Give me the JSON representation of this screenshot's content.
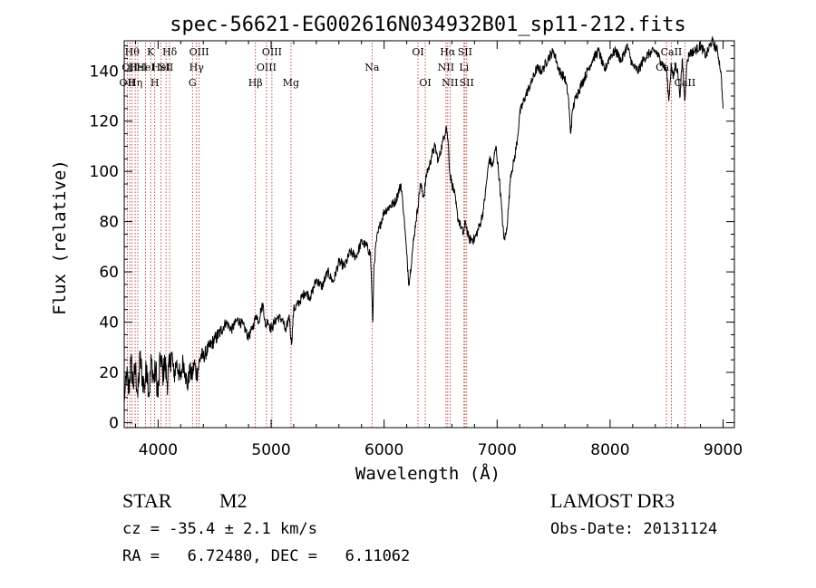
{
  "chart_data": {
    "type": "line",
    "title": "spec-56621-EG002616N034932B01_sp11-212.fits",
    "xlabel": "Wavelength (Å)",
    "ylabel": "Flux (relative)",
    "xlim": [
      3700,
      9100
    ],
    "ylim": [
      -2,
      152
    ],
    "xticks": [
      4000,
      5000,
      6000,
      7000,
      8000,
      9000
    ],
    "yticks": [
      0,
      20,
      40,
      60,
      80,
      100,
      120,
      140
    ],
    "line_color": "#000000",
    "marker_color": "#b22222",
    "series": [
      {
        "name": "flux",
        "x": [
          3700,
          3720,
          3740,
          3760,
          3780,
          3800,
          3820,
          3840,
          3860,
          3880,
          3900,
          3920,
          3940,
          3960,
          3980,
          4000,
          4020,
          4040,
          4060,
          4080,
          4100,
          4120,
          4140,
          4160,
          4180,
          4200,
          4220,
          4240,
          4260,
          4280,
          4300,
          4320,
          4340,
          4360,
          4380,
          4400,
          4450,
          4500,
          4550,
          4600,
          4650,
          4700,
          4750,
          4800,
          4830,
          4850,
          4870,
          4890,
          4910,
          4930,
          4950,
          4970,
          5000,
          5030,
          5060,
          5100,
          5130,
          5160,
          5180,
          5200,
          5250,
          5300,
          5350,
          5400,
          5450,
          5500,
          5550,
          5600,
          5650,
          5700,
          5750,
          5800,
          5850,
          5880,
          5900,
          5910,
          5930,
          5960,
          6000,
          6050,
          6100,
          6150,
          6180,
          6200,
          6220,
          6250,
          6280,
          6300,
          6320,
          6350,
          6380,
          6400,
          6420,
          6450,
          6480,
          6520,
          6550,
          6570,
          6580,
          6600,
          6620,
          6650,
          6680,
          6700,
          6720,
          6750,
          6800,
          6850,
          6880,
          6900,
          6930,
          6960,
          6990,
          7020,
          7040,
          7060,
          7080,
          7100,
          7120,
          7150,
          7180,
          7200,
          7250,
          7300,
          7350,
          7400,
          7450,
          7500,
          7550,
          7600,
          7630,
          7650,
          7670,
          7700,
          7750,
          7800,
          7850,
          7900,
          7950,
          8000,
          8050,
          8100,
          8150,
          8200,
          8250,
          8300,
          8350,
          8400,
          8450,
          8500,
          8520,
          8540,
          8560,
          8580,
          8600,
          8620,
          8640,
          8660,
          8680,
          8700,
          8750,
          8800,
          8850,
          8900,
          8950,
          8980,
          9000
        ],
        "y": [
          8,
          20,
          12,
          24,
          15,
          22,
          10,
          26,
          18,
          14,
          23,
          11,
          25,
          17,
          21,
          10,
          27,
          19,
          24,
          16,
          22,
          28,
          18,
          24,
          21,
          17,
          25,
          20,
          14,
          21,
          18,
          24,
          19,
          23,
          27,
          26,
          30,
          33,
          36,
          40,
          37,
          41,
          39,
          34,
          37,
          40,
          43,
          40,
          45,
          47,
          38,
          41,
          37,
          40,
          42,
          41,
          36,
          43,
          31,
          45,
          48,
          52,
          50,
          57,
          54,
          60,
          56,
          64,
          62,
          68,
          66,
          72,
          70,
          67,
          40,
          62,
          72,
          78,
          84,
          86,
          88,
          95,
          80,
          67,
          55,
          68,
          80,
          86,
          95,
          90,
          100,
          102,
          106,
          110,
          104,
          112,
          118,
          110,
          100,
          95,
          92,
          82,
          78,
          75,
          80,
          73,
          73,
          79,
          85,
          93,
          105,
          102,
          110,
          97,
          85,
          73,
          75,
          85,
          99,
          104,
          113,
          123,
          130,
          135,
          141,
          140,
          145,
          148,
          140,
          137,
          130,
          115,
          125,
          130,
          135,
          140,
          145,
          148,
          140,
          146,
          148,
          144,
          150,
          142,
          140,
          145,
          147,
          148,
          144,
          140,
          128,
          142,
          137,
          143,
          139,
          130,
          145,
          128,
          143,
          147,
          148,
          150,
          146,
          152,
          148,
          140,
          125
        ],
        "noise": [
          0,
          6,
          6,
          6,
          6,
          6,
          6,
          6,
          6,
          6,
          6,
          6,
          6,
          6,
          6,
          6,
          6,
          6,
          6,
          6,
          6,
          5,
          5,
          5,
          5,
          4,
          4,
          4,
          4,
          4,
          4,
          4,
          4,
          4,
          4,
          3,
          3,
          3,
          3,
          2,
          2,
          2,
          2,
          2,
          2,
          2,
          2,
          2,
          2,
          2,
          2,
          2,
          2,
          2,
          2,
          2,
          2,
          2,
          2,
          2,
          2,
          2,
          2,
          2,
          2,
          2,
          2,
          2,
          2,
          2,
          2,
          2,
          2,
          2,
          0,
          2,
          2,
          2,
          2,
          2,
          2,
          2,
          1,
          2,
          2,
          2,
          2,
          2,
          2,
          2,
          2,
          2,
          2,
          2,
          2,
          2,
          2,
          2,
          2,
          2,
          2,
          2,
          2,
          2,
          2,
          2,
          2,
          2,
          2,
          2,
          2,
          2,
          2,
          2,
          2,
          2,
          2,
          2,
          2,
          2,
          2,
          2,
          2,
          2,
          2,
          2,
          2,
          2,
          2,
          2,
          2,
          2,
          2,
          2,
          2,
          2,
          2,
          2,
          2,
          2,
          2,
          2,
          2,
          2,
          2,
          2,
          2,
          2,
          2,
          2,
          2,
          2,
          2,
          2,
          2,
          2,
          2,
          2,
          2,
          2,
          2,
          2,
          2,
          2,
          2,
          2,
          0
        ]
      }
    ],
    "lines": [
      {
        "wl": 3727,
        "labels": [
          "OII"
        ],
        "row": 3
      },
      {
        "wl": 3750,
        "labels": [
          "OII"
        ],
        "row": 2
      },
      {
        "wl": 3770,
        "labels": [
          "Hθ"
        ],
        "row": 1
      },
      {
        "wl": 3797,
        "labels": [
          "Hη"
        ],
        "row": 3
      },
      {
        "wl": 3820,
        "labels": [
          "HeI"
        ],
        "row": 2
      },
      {
        "wl": 3889,
        "labels": [
          "HeI"
        ],
        "row": 2
      },
      {
        "wl": 3934,
        "labels": [
          "K"
        ],
        "row": 1
      },
      {
        "wl": 3970,
        "labels": [
          "H"
        ],
        "row": 3
      },
      {
        "wl": 4026,
        "labels": [
          "HeI"
        ],
        "row": 2
      },
      {
        "wl": 4070,
        "labels": [
          "SII"
        ],
        "row": 2
      },
      {
        "wl": 4102,
        "labels": [
          "Hδ"
        ],
        "row": 1
      },
      {
        "wl": 4304,
        "labels": [
          "G"
        ],
        "row": 3
      },
      {
        "wl": 4340,
        "labels": [
          "Hγ"
        ],
        "row": 2
      },
      {
        "wl": 4363,
        "labels": [
          "OIII"
        ],
        "row": 1
      },
      {
        "wl": 4861,
        "labels": [
          "Hβ"
        ],
        "row": 3
      },
      {
        "wl": 4959,
        "labels": [
          "OIII"
        ],
        "row": 2
      },
      {
        "wl": 5007,
        "labels": [
          "OIII"
        ],
        "row": 1
      },
      {
        "wl": 5176,
        "labels": [
          "Mg"
        ],
        "row": 3
      },
      {
        "wl": 5893,
        "labels": [
          "Na"
        ],
        "row": 2
      },
      {
        "wl": 6300,
        "labels": [
          "OI"
        ],
        "row": 1
      },
      {
        "wl": 6364,
        "labels": [
          "OI"
        ],
        "row": 3
      },
      {
        "wl": 6548,
        "labels": [
          "NII"
        ],
        "row": 2
      },
      {
        "wl": 6563,
        "labels": [
          "Hα"
        ],
        "row": 1
      },
      {
        "wl": 6583,
        "labels": [
          "NII"
        ],
        "row": 3
      },
      {
        "wl": 6707,
        "labels": [
          "Li"
        ],
        "row": 2
      },
      {
        "wl": 6716,
        "labels": [
          "SII"
        ],
        "row": 1
      },
      {
        "wl": 6731,
        "labels": [
          "SII"
        ],
        "row": 3
      },
      {
        "wl": 8498,
        "labels": [
          "CaII"
        ],
        "row": 2
      },
      {
        "wl": 8542,
        "labels": [
          "CaII"
        ],
        "row": 1
      },
      {
        "wl": 8662,
        "labels": [
          "CaII"
        ],
        "row": 3
      }
    ]
  },
  "info": {
    "class": "STAR",
    "subclass": "M2",
    "survey": "LAMOST DR3",
    "cz": "cz = -35.4 ± 2.1 km/s",
    "obs_date": "Obs-Date: 20131124",
    "coords": "RA =   6.72480, DEC =   6.11062"
  }
}
